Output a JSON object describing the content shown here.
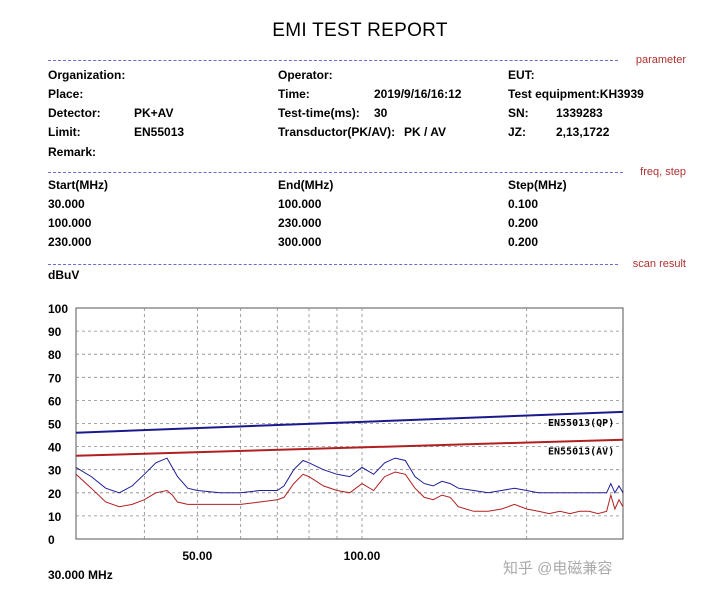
{
  "report": {
    "title": "EMI TEST REPORT",
    "sections": {
      "parameter": "parameter",
      "freq_step": "freq, step",
      "scan_result": "scan result"
    },
    "fields": {
      "organization_label": "Organization:",
      "operator_label": "Operator:",
      "eut_label": "EUT:",
      "place_label": "Place:",
      "time_label": "Time:",
      "time_value": "2019/9/16/16:12",
      "test_equipment": "Test equipment:KH3939",
      "detector_label": "Detector:",
      "detector_value": "PK+AV",
      "test_time_label": "Test-time(ms):",
      "test_time_value": "30",
      "sn_label": "SN:",
      "sn_value": "1339283",
      "limit_label": "Limit:",
      "limit_value": "EN55013",
      "transducer_label": "Transductor(PK/AV):",
      "transducer_value": "PK  /  AV",
      "jz_label": "JZ:",
      "jz_value": "2,13,1722",
      "remark_label": "Remark:"
    },
    "freq_table": {
      "headers": [
        "Start(MHz)",
        "End(MHz)",
        "Step(MHz)"
      ],
      "rows": [
        [
          "30.000",
          "100.000",
          "0.100"
        ],
        [
          "100.000",
          "230.000",
          "0.200"
        ],
        [
          "230.000",
          "300.000",
          "0.200"
        ]
      ]
    },
    "unit_label": "dBuV",
    "start_freq_label": "30.000 MHz",
    "watermark": "知乎 @电磁兼容"
  },
  "chart_data": {
    "type": "line",
    "ylabel": "dBuV",
    "ylim": [
      0,
      100
    ],
    "yticks": [
      "100",
      "90",
      "80",
      "70",
      "60",
      "50",
      "40",
      "30",
      "20",
      "10",
      "0"
    ],
    "xlim": [
      30,
      300
    ],
    "xscale": "log",
    "xtick_labels": [
      "50.00",
      "100.00"
    ],
    "grid": true,
    "colors": {
      "limit_qp": "#1a1a8c",
      "limit_av": "#b02020",
      "peak": "#1e1e96",
      "average": "#b02020",
      "grid": "#888888"
    },
    "series": [
      {
        "name": "EN55013(QP)",
        "x": [
          30,
          300
        ],
        "values": [
          46,
          55
        ]
      },
      {
        "name": "EN55013(AV)",
        "x": [
          30,
          300
        ],
        "values": [
          36,
          43
        ]
      },
      {
        "name": "",
        "x": [
          30,
          32,
          34,
          36,
          38,
          40,
          42,
          44,
          45,
          46,
          48,
          50,
          55,
          60,
          65,
          70,
          72,
          75,
          78,
          80,
          85,
          90,
          95,
          100,
          105,
          110,
          115,
          120,
          125,
          130,
          135,
          140,
          145,
          150,
          160,
          170,
          180,
          190,
          200,
          210,
          220,
          230,
          240,
          250,
          260,
          270,
          280,
          285,
          290,
          295,
          300
        ],
        "values": [
          31,
          27,
          22,
          20,
          23,
          28,
          33,
          35,
          31,
          27,
          22,
          21,
          20,
          20,
          21,
          21,
          23,
          30,
          34,
          33,
          30,
          28,
          27,
          31,
          28,
          33,
          35,
          34,
          27,
          24,
          23,
          25,
          24,
          22,
          21,
          20,
          21,
          22,
          21,
          20,
          20,
          20,
          20,
          20,
          20,
          20,
          20,
          24,
          20,
          23,
          20
        ]
      },
      {
        "name": "",
        "x": [
          30,
          32,
          34,
          36,
          38,
          40,
          42,
          44,
          45,
          46,
          48,
          50,
          55,
          60,
          65,
          70,
          72,
          75,
          78,
          80,
          85,
          90,
          95,
          100,
          105,
          110,
          115,
          120,
          125,
          130,
          135,
          140,
          145,
          150,
          160,
          170,
          180,
          190,
          200,
          210,
          220,
          230,
          240,
          250,
          260,
          270,
          280,
          285,
          290,
          295,
          300
        ],
        "values": [
          28,
          22,
          16,
          14,
          15,
          17,
          20,
          21,
          19,
          16,
          15,
          15,
          15,
          15,
          16,
          17,
          18,
          24,
          28,
          27,
          23,
          21,
          20,
          24,
          21,
          27,
          29,
          28,
          22,
          18,
          17,
          19,
          18,
          14,
          12,
          12,
          13,
          15,
          13,
          12,
          11,
          12,
          11,
          12,
          12,
          11,
          12,
          19,
          13,
          17,
          14
        ]
      }
    ]
  }
}
